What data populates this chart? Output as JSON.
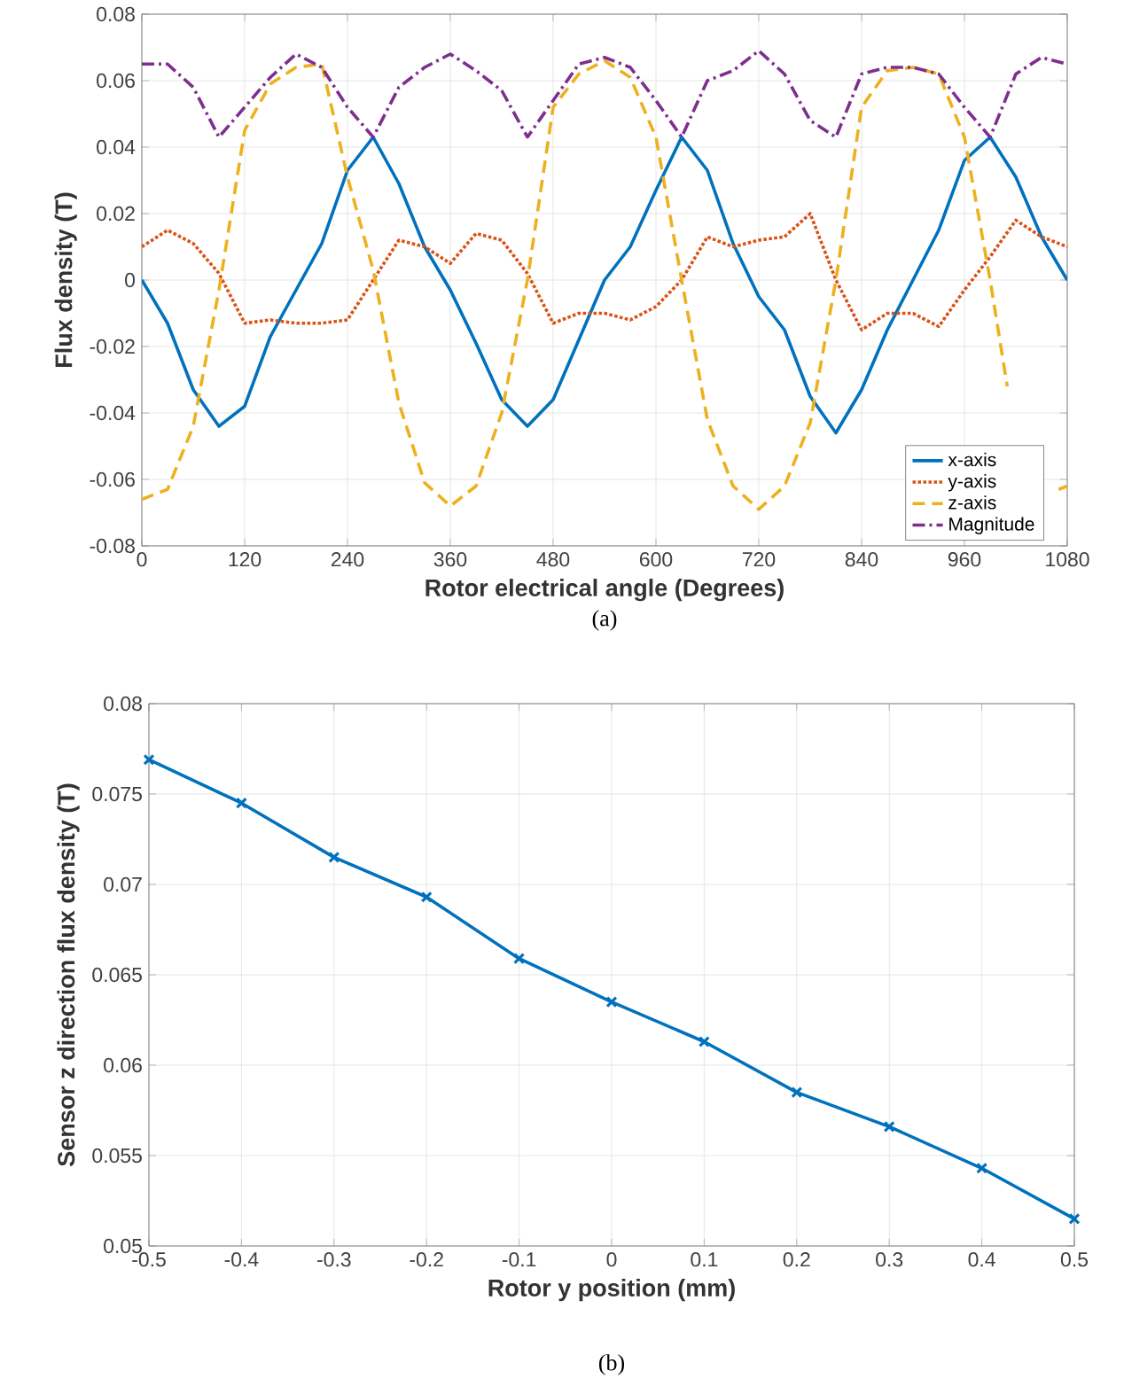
{
  "chart_data": [
    {
      "type": "line",
      "xlabel": "Rotor electrical angle (Degrees)",
      "ylabel": "Flux density (T)",
      "annotations": [
        "(a)"
      ],
      "xlim": [
        0,
        1080
      ],
      "ylim": [
        -0.08,
        0.08
      ],
      "xticks": [
        0,
        120,
        240,
        360,
        480,
        600,
        720,
        840,
        960,
        1080
      ],
      "yticks": [
        -0.08,
        -0.06,
        -0.04,
        -0.02,
        0,
        0.02,
        0.04,
        0.06,
        0.08
      ],
      "grid": true,
      "legend": "bottom right",
      "x": [
        0,
        30,
        60,
        90,
        120,
        150,
        180,
        210,
        240,
        270,
        300,
        330,
        360,
        390,
        420,
        450,
        480,
        510,
        540,
        570,
        600,
        630,
        660,
        690,
        720,
        750,
        780,
        810,
        840,
        870,
        900,
        930,
        960,
        990,
        1020,
        1050,
        1080
      ],
      "series": [
        {
          "name": "x-axis",
          "color": "#0072bd",
          "line_style": "solid",
          "values": [
            0,
            -0.013,
            -0.033,
            -0.044,
            -0.038,
            -0.017,
            -0.003,
            0.011,
            0.033,
            0.043,
            0.029,
            0.01,
            -0.003,
            -0.019,
            -0.036,
            -0.044,
            -0.036,
            -0.018,
            0,
            0.01,
            0.027,
            0.043,
            0.033,
            0.011,
            -0.005,
            -0.015,
            -0.035,
            -0.046,
            -0.033,
            -0.015,
            0,
            0.015,
            0.036,
            0.043,
            0.031,
            0.013,
            0
          ]
        },
        {
          "name": "y-axis",
          "color": "#d95319",
          "line_style": "dotted",
          "values": [
            0.01,
            0.015,
            0.011,
            0.002,
            -0.013,
            -0.012,
            -0.013,
            -0.013,
            -0.012,
            0,
            0.012,
            0.01,
            0.005,
            0.014,
            0.012,
            0.002,
            -0.013,
            -0.01,
            -0.01,
            -0.012,
            -0.008,
            0,
            0.013,
            0.01,
            0.012,
            0.013,
            0.02,
            0,
            -0.015,
            -0.01,
            -0.01,
            -0.014,
            -0.003,
            0.007,
            0.018,
            0.013,
            0.01
          ]
        },
        {
          "name": "z-axis",
          "color": "#edb120",
          "line_style": "dashed",
          "x": [
            0,
            30,
            60,
            90,
            120,
            150,
            180,
            210,
            240,
            270,
            300,
            330,
            360,
            390,
            420,
            450,
            480,
            510,
            540,
            570,
            600,
            630,
            660,
            690,
            720,
            750,
            780,
            810,
            840,
            870,
            900,
            930,
            960,
            990,
            1010,
            1040,
            1070,
            1080
          ],
          "values": [
            -0.066,
            -0.063,
            -0.044,
            -0.003,
            0.045,
            0.059,
            0.064,
            0.065,
            0.031,
            0.003,
            -0.037,
            -0.061,
            -0.068,
            -0.062,
            -0.04,
            0,
            0.052,
            0.062,
            0.066,
            0.061,
            0.043,
            0,
            -0.042,
            -0.062,
            -0.069,
            -0.062,
            -0.043,
            0,
            0.052,
            0.063,
            0.064,
            0.062,
            0.043,
            0,
            -0.032,
            null,
            -0.063,
            -0.062
          ]
        },
        {
          "name": "Magnitude",
          "color": "#7e2f8e",
          "line_style": "dashdot",
          "values": [
            0.065,
            0.065,
            0.058,
            0.043,
            0.052,
            0.061,
            0.068,
            0.064,
            0.052,
            0.043,
            0.058,
            0.064,
            0.068,
            0.063,
            0.057,
            0.043,
            0.054,
            0.065,
            0.067,
            0.064,
            0.054,
            0.043,
            0.06,
            0.063,
            0.069,
            0.062,
            0.048,
            0.043,
            0.062,
            0.064,
            0.064,
            0.062,
            0.052,
            0.043,
            0.062,
            0.067,
            0.065
          ]
        }
      ]
    },
    {
      "type": "line",
      "xlabel": "Rotor y position (mm)",
      "ylabel": "Sensor z direction flux density (T)",
      "annotations": [
        "(b)"
      ],
      "xlim": [
        -0.5,
        0.5
      ],
      "ylim": [
        0.05,
        0.08
      ],
      "xticks": [
        -0.5,
        -0.4,
        -0.3,
        -0.2,
        -0.1,
        0,
        0.1,
        0.2,
        0.3,
        0.4,
        0.5
      ],
      "yticks": [
        0.05,
        0.055,
        0.06,
        0.065,
        0.07,
        0.075,
        0.08
      ],
      "grid": true,
      "marker": "cross",
      "x": [
        -0.5,
        -0.4,
        -0.3,
        -0.2,
        -0.1,
        0,
        0.1,
        0.2,
        0.3,
        0.4,
        0.5
      ],
      "series": [
        {
          "color": "#0072bd",
          "values": [
            0.0769,
            0.0745,
            0.0715,
            0.0693,
            0.0659,
            0.0635,
            0.0613,
            0.0585,
            0.0566,
            0.0543,
            0.0515
          ]
        }
      ]
    }
  ]
}
